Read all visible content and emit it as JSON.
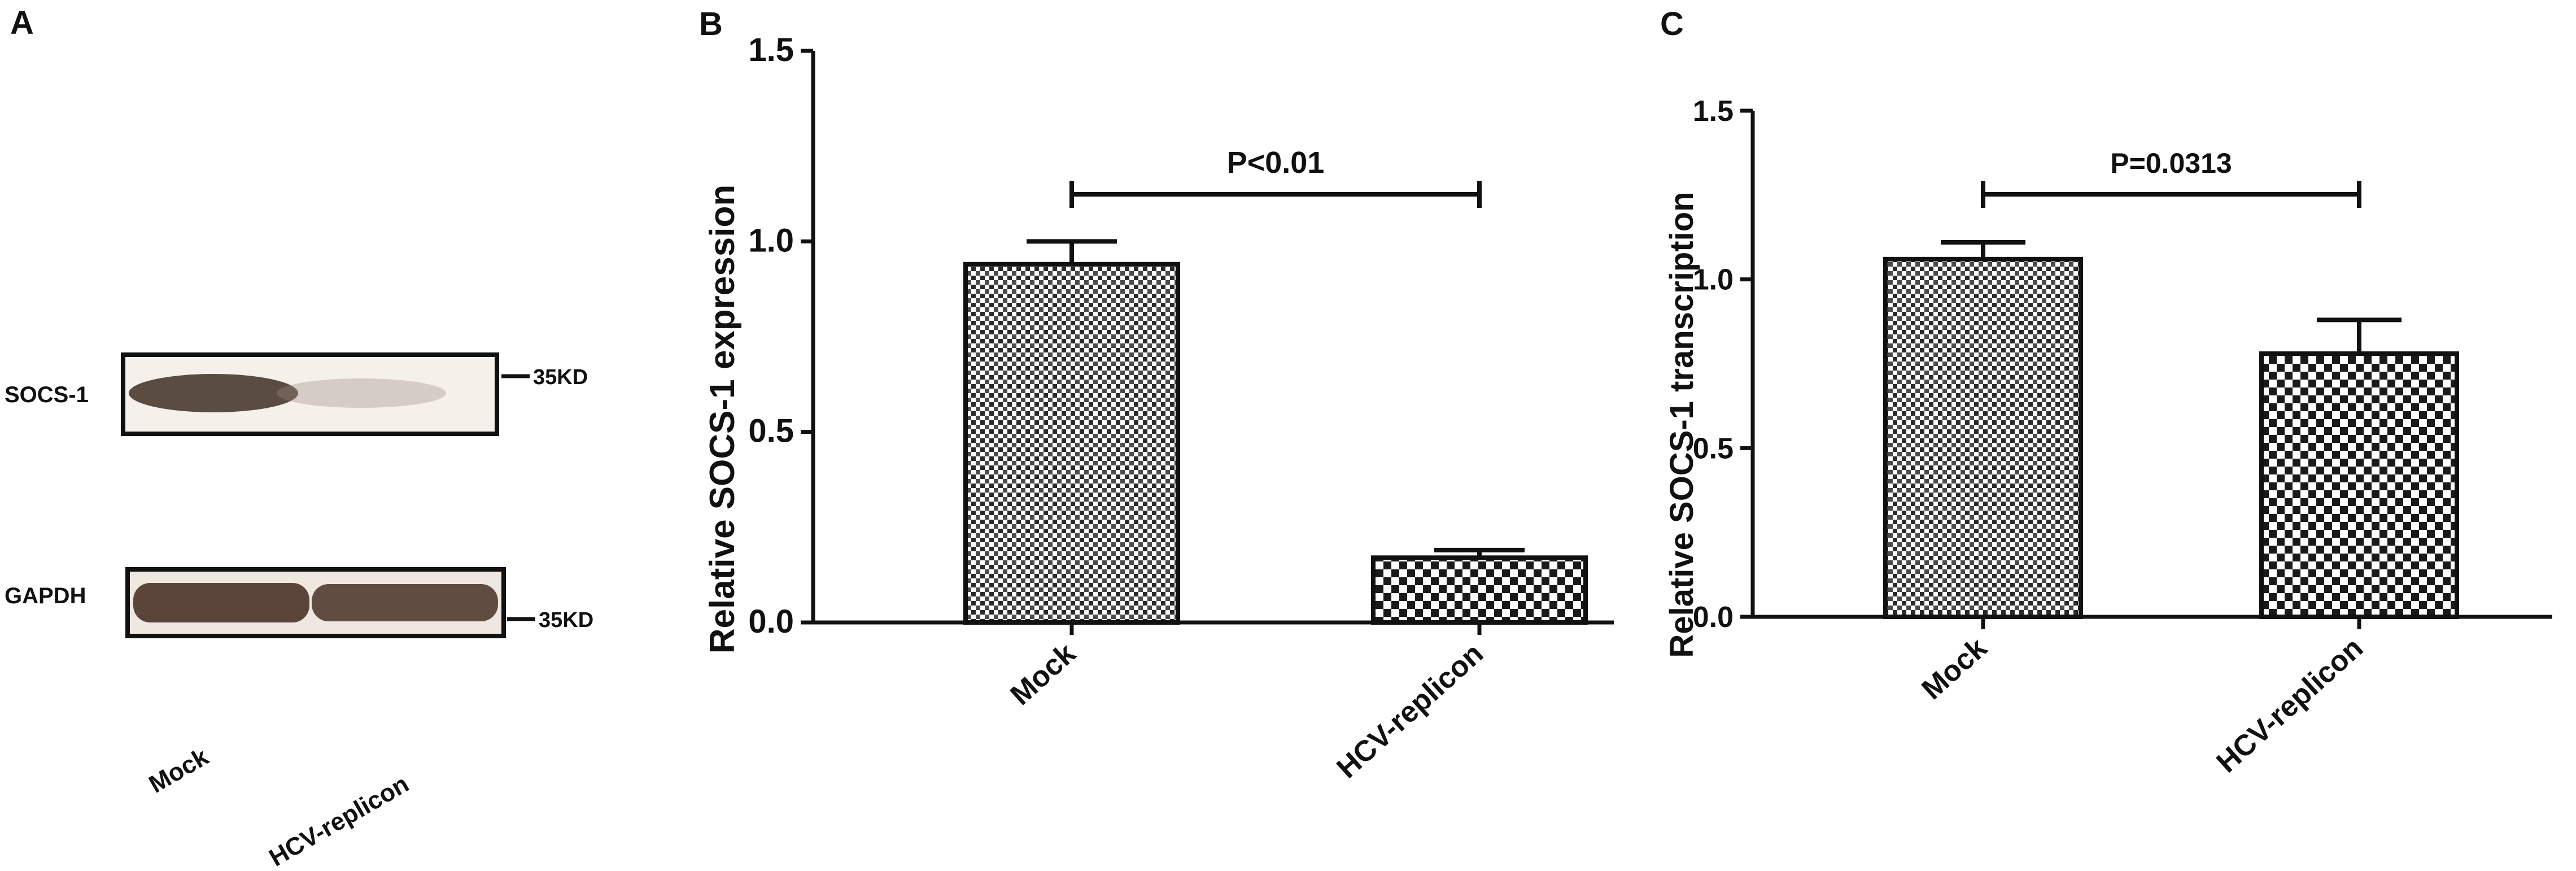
{
  "panels": {
    "a": {
      "letter": "A",
      "blots": [
        {
          "label": "SOCS-1",
          "marker": "35KD"
        },
        {
          "label": "GAPDH",
          "marker": "35KD"
        }
      ],
      "lanes": [
        "Mock",
        "HCV-replicon"
      ]
    }
  },
  "chart_data": [
    {
      "panel": "B",
      "type": "bar",
      "categories": [
        "Mock",
        "HCV-replicon"
      ],
      "values": [
        0.94,
        0.17
      ],
      "errors": [
        0.06,
        0.02
      ],
      "ylabel": "Relative SOCS-1 expression",
      "xlabel": "",
      "ylim": [
        0,
        1.5
      ],
      "yticks": [
        "0.0",
        "0.5",
        "1.0",
        "1.5"
      ],
      "annotation": "P<0.01"
    },
    {
      "panel": "C",
      "type": "bar",
      "categories": [
        "Mock",
        "HCV-replicon"
      ],
      "values": [
        1.06,
        0.78
      ],
      "errors": [
        0.05,
        0.1
      ],
      "ylabel": "Relative SOCS-1 transcription",
      "xlabel": "",
      "ylim": [
        0,
        1.5
      ],
      "yticks": [
        "0.0",
        "0.5",
        "1.0",
        "1.5"
      ],
      "annotation": "P=0.0313"
    }
  ]
}
